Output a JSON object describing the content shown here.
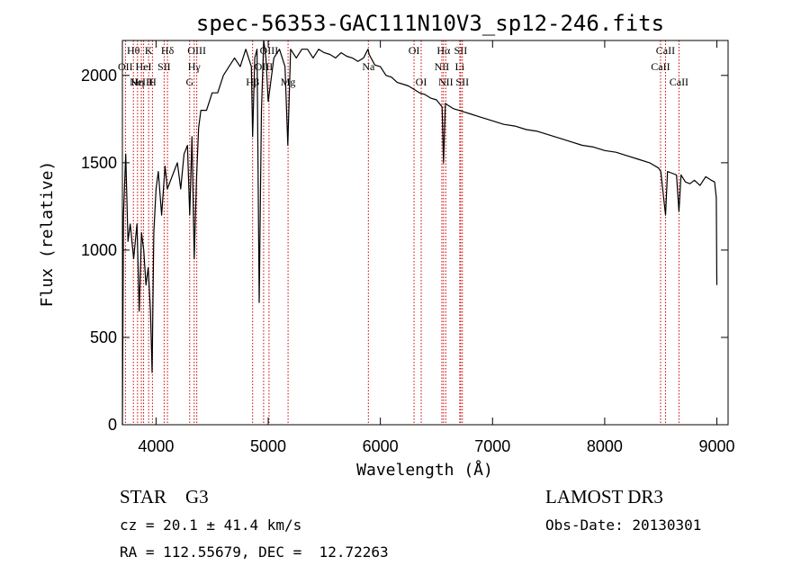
{
  "chart_data": {
    "type": "line",
    "title": "spec-56353-GAC111N10V3_sp12-246.fits",
    "xlabel": "Wavelength (Å)",
    "ylabel": "Flux (relative)",
    "xlim": [
      3700,
      9100
    ],
    "ylim": [
      0,
      2200
    ],
    "xticks": [
      4000,
      5000,
      6000,
      7000,
      8000,
      9000
    ],
    "yticks": [
      0,
      500,
      1000,
      1500,
      2000
    ],
    "grid": false,
    "series": [
      {
        "name": "spectrum",
        "x": [
          3700,
          3710,
          3730,
          3750,
          3770,
          3800,
          3830,
          3850,
          3870,
          3890,
          3910,
          3930,
          3950,
          3965,
          3980,
          4000,
          4020,
          4050,
          4080,
          4100,
          4130,
          4160,
          4190,
          4220,
          4250,
          4280,
          4300,
          4320,
          4340,
          4360,
          4380,
          4400,
          4450,
          4500,
          4550,
          4600,
          4650,
          4700,
          4750,
          4800,
          4850,
          4861,
          4880,
          4900,
          4920,
          4940,
          4960,
          4980,
          5000,
          5050,
          5100,
          5150,
          5175,
          5200,
          5250,
          5300,
          5350,
          5400,
          5450,
          5500,
          5550,
          5600,
          5650,
          5700,
          5750,
          5800,
          5850,
          5890,
          5900,
          5950,
          6000,
          6050,
          6100,
          6150,
          6200,
          6250,
          6300,
          6350,
          6400,
          6450,
          6500,
          6550,
          6563,
          6580,
          6600,
          6650,
          6700,
          6750,
          6800,
          6900,
          7000,
          7100,
          7200,
          7300,
          7400,
          7500,
          7600,
          7700,
          7800,
          7900,
          8000,
          8100,
          8200,
          8300,
          8400,
          8480,
          8500,
          8542,
          8560,
          8600,
          8640,
          8662,
          8680,
          8720,
          8760,
          8800,
          8850,
          8900,
          8950,
          8980,
          8995,
          9000
        ],
        "y": [
          0,
          1200,
          1550,
          1050,
          1150,
          950,
          1150,
          650,
          1100,
          1000,
          800,
          900,
          650,
          300,
          1100,
          1350,
          1450,
          1200,
          1480,
          1350,
          1400,
          1450,
          1500,
          1350,
          1550,
          1600,
          1200,
          1650,
          950,
          1400,
          1700,
          1800,
          1800,
          1900,
          1900,
          2000,
          2050,
          2100,
          2050,
          2150,
          2050,
          1650,
          2100,
          2150,
          700,
          1800,
          2200,
          2100,
          1850,
          2100,
          2150,
          2050,
          1600,
          2150,
          2100,
          2150,
          2150,
          2100,
          2150,
          2130,
          2120,
          2100,
          2130,
          2110,
          2100,
          2080,
          2100,
          2150,
          2120,
          2060,
          2050,
          2000,
          1990,
          1960,
          1950,
          1940,
          1920,
          1900,
          1890,
          1870,
          1860,
          1820,
          1500,
          1840,
          1830,
          1810,
          1800,
          1790,
          1780,
          1760,
          1740,
          1720,
          1710,
          1690,
          1680,
          1660,
          1640,
          1620,
          1600,
          1590,
          1570,
          1560,
          1540,
          1520,
          1500,
          1470,
          1450,
          1200,
          1450,
          1440,
          1430,
          1220,
          1430,
          1390,
          1380,
          1400,
          1370,
          1420,
          1400,
          1390,
          1300,
          800
        ]
      }
    ],
    "line_markers": [
      {
        "wavelength": 3727,
        "label": "OII",
        "row": 1
      },
      {
        "wavelength": 3798,
        "label": "Hθ",
        "row": 0
      },
      {
        "wavelength": 3835,
        "label": "Hη",
        "row": 2
      },
      {
        "wavelength": 3869,
        "label": "NeIII",
        "row": 2
      },
      {
        "wavelength": 3889,
        "label": "HeI",
        "row": 1
      },
      {
        "wavelength": 3934,
        "label": "K",
        "row": 0
      },
      {
        "wavelength": 3968,
        "label": "H",
        "row": 2
      },
      {
        "wavelength": 4072,
        "label": "SII",
        "row": 1
      },
      {
        "wavelength": 4102,
        "label": "Hδ",
        "row": 0
      },
      {
        "wavelength": 4300,
        "label": "G",
        "row": 2
      },
      {
        "wavelength": 4340,
        "label": "Hγ",
        "row": 1
      },
      {
        "wavelength": 4363,
        "label": "OIII",
        "row": 0
      },
      {
        "wavelength": 4861,
        "label": "Hβ",
        "row": 2
      },
      {
        "wavelength": 4959,
        "label": "OIII",
        "row": 1
      },
      {
        "wavelength": 5007,
        "label": "OIII",
        "row": 0
      },
      {
        "wavelength": 5177,
        "label": "Mg",
        "row": 2
      },
      {
        "wavelength": 5893,
        "label": "Na",
        "row": 1
      },
      {
        "wavelength": 6300,
        "label": "OI",
        "row": 0
      },
      {
        "wavelength": 6364,
        "label": "OI",
        "row": 2
      },
      {
        "wavelength": 6548,
        "label": "NII",
        "row": 1
      },
      {
        "wavelength": 6563,
        "label": "Hα",
        "row": 0
      },
      {
        "wavelength": 6583,
        "label": "NII",
        "row": 2
      },
      {
        "wavelength": 6708,
        "label": "Li",
        "row": 1
      },
      {
        "wavelength": 6716,
        "label": "SII",
        "row": 0
      },
      {
        "wavelength": 6731,
        "label": "SII",
        "row": 2
      },
      {
        "wavelength": 8498,
        "label": "CaII",
        "row": 1
      },
      {
        "wavelength": 8542,
        "label": "CaII",
        "row": 0
      },
      {
        "wavelength": 8662,
        "label": "CaII",
        "row": 2
      }
    ]
  },
  "info": {
    "object_class": "STAR    G3",
    "survey": "LAMOST DR3",
    "cz": "cz = 20.1 ± 41.4 km/s",
    "obs_date": "Obs-Date: 20130301",
    "radec": "RA = 112.55679, DEC =  12.72263"
  },
  "colors": {
    "spectrum": "#000000",
    "marker_line": "#cc0000",
    "axis": "#000000"
  }
}
